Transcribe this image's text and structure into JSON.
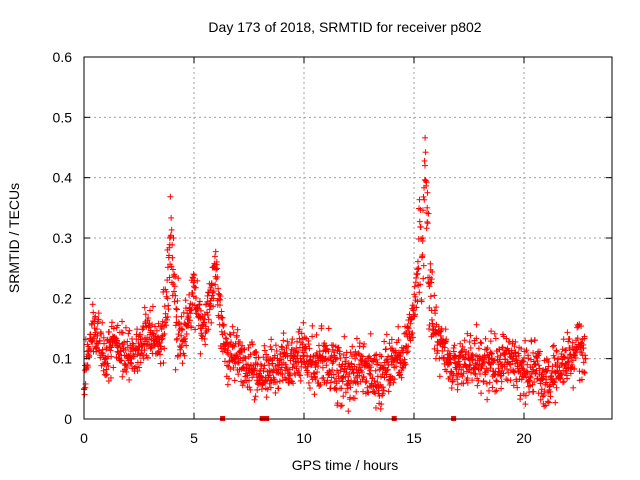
{
  "chart_data": {
    "type": "scatter",
    "title": "Day 173 of 2018, SRMTID for receiver p802",
    "xlabel": "GPS time / hours",
    "ylabel": "SRMTID / TECUs",
    "xlim": [
      0,
      24
    ],
    "ylim": [
      0,
      0.6
    ],
    "xticks": [
      0,
      5,
      10,
      15,
      20
    ],
    "yticks": [
      0,
      0.1,
      0.2,
      0.3,
      0.4,
      0.5,
      0.6
    ],
    "xtick_labels": [
      "0",
      "5",
      "10",
      "15",
      "20"
    ],
    "ytick_labels": [
      "0",
      "0.1",
      "0.2",
      "0.3",
      "0.4",
      "0.5",
      "0.6"
    ],
    "grid": true,
    "marker": "+",
    "marker_color": "#ff0000",
    "data_end_hour": 22.8,
    "gap_markers_x": [
      6.3,
      8.1,
      8.3,
      14.1,
      16.8
    ],
    "series": [
      {
        "name": "SRMTID",
        "x": [
          0.0,
          0.2,
          0.5,
          1.0,
          1.5,
          2.0,
          2.5,
          3.0,
          3.5,
          3.8,
          3.9,
          4.2,
          4.5,
          4.8,
          5.0,
          5.3,
          5.8,
          6.0,
          6.3,
          6.5,
          7.0,
          7.5,
          7.8,
          8.0,
          8.5,
          9.0,
          9.5,
          10.0,
          10.5,
          11.0,
          11.5,
          12.0,
          12.5,
          13.0,
          13.5,
          14.0,
          14.5,
          14.8,
          15.0,
          15.2,
          15.4,
          15.5,
          15.6,
          15.7,
          15.8,
          16.0,
          16.3,
          16.6,
          17.0,
          17.5,
          18.0,
          18.5,
          19.0,
          19.5,
          20.0,
          20.5,
          21.0,
          21.5,
          22.0,
          22.5,
          22.8
        ],
        "y": [
          0.05,
          0.12,
          0.14,
          0.1,
          0.13,
          0.1,
          0.12,
          0.14,
          0.12,
          0.2,
          0.3,
          0.16,
          0.13,
          0.18,
          0.22,
          0.15,
          0.2,
          0.25,
          0.14,
          0.11,
          0.1,
          0.08,
          0.09,
          0.07,
          0.08,
          0.09,
          0.1,
          0.11,
          0.09,
          0.1,
          0.08,
          0.07,
          0.09,
          0.08,
          0.07,
          0.09,
          0.11,
          0.14,
          0.17,
          0.25,
          0.3,
          0.42,
          0.35,
          0.22,
          0.18,
          0.14,
          0.12,
          0.1,
          0.09,
          0.1,
          0.1,
          0.09,
          0.09,
          0.1,
          0.08,
          0.09,
          0.07,
          0.08,
          0.1,
          0.12,
          0.1
        ]
      }
    ]
  }
}
